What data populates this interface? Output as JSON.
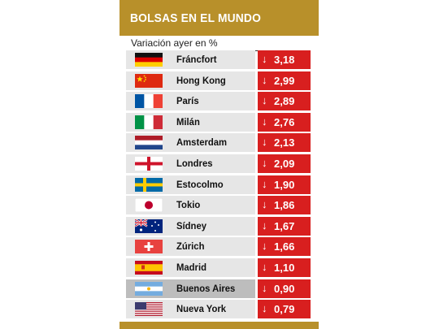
{
  "header": {
    "title": "BOLSAS EN EL MUNDO"
  },
  "subtitle": "Variación ayer en %",
  "colors": {
    "accent": "#b8902a",
    "negative": "#d81f1f",
    "row": "#e6e6e6",
    "row_highlight": "#bdbdbd"
  },
  "chart_data": {
    "type": "table",
    "title": "BOLSAS EN EL MUNDO",
    "subtitle": "Variación ayer en %",
    "direction": "down",
    "categories": [
      "Fráncfort",
      "Hong Kong",
      "París",
      "Milán",
      "Amsterdam",
      "Londres",
      "Estocolmo",
      "Tokio",
      "Sídney",
      "Zúrich",
      "Madrid",
      "Buenos Aires",
      "Nueva York"
    ],
    "values": [
      "3,18",
      "2,99",
      "2,89",
      "2,76",
      "2,13",
      "2,09",
      "1,90",
      "1,86",
      "1,67",
      "1,66",
      "1,10",
      "0,90",
      "0,79"
    ],
    "rows": [
      {
        "country": "Fráncfort",
        "flag": "germany-flag-icon",
        "value": "3,18"
      },
      {
        "country": "Hong Kong",
        "flag": "china-flag-icon",
        "value": "2,99"
      },
      {
        "country": "París",
        "flag": "france-flag-icon",
        "value": "2,89"
      },
      {
        "country": "Milán",
        "flag": "italy-flag-icon",
        "value": "2,76"
      },
      {
        "country": "Amsterdam",
        "flag": "netherlands-flag-icon",
        "value": "2,13"
      },
      {
        "country": "Londres",
        "flag": "england-flag-icon",
        "value": "2,09"
      },
      {
        "country": "Estocolmo",
        "flag": "sweden-flag-icon",
        "value": "1,90"
      },
      {
        "country": "Tokio",
        "flag": "japan-flag-icon",
        "value": "1,86"
      },
      {
        "country": "Sídney",
        "flag": "australia-flag-icon",
        "value": "1,67"
      },
      {
        "country": "Zúrich",
        "flag": "switzerland-flag-icon",
        "value": "1,66"
      },
      {
        "country": "Madrid",
        "flag": "spain-flag-icon",
        "value": "1,10"
      },
      {
        "country": "Buenos Aires",
        "flag": "argentina-flag-icon",
        "value": "0,90",
        "highlight": true
      },
      {
        "country": "Nueva York",
        "flag": "usa-flag-icon",
        "value": "0,79"
      }
    ],
    "arrow": "↓"
  }
}
